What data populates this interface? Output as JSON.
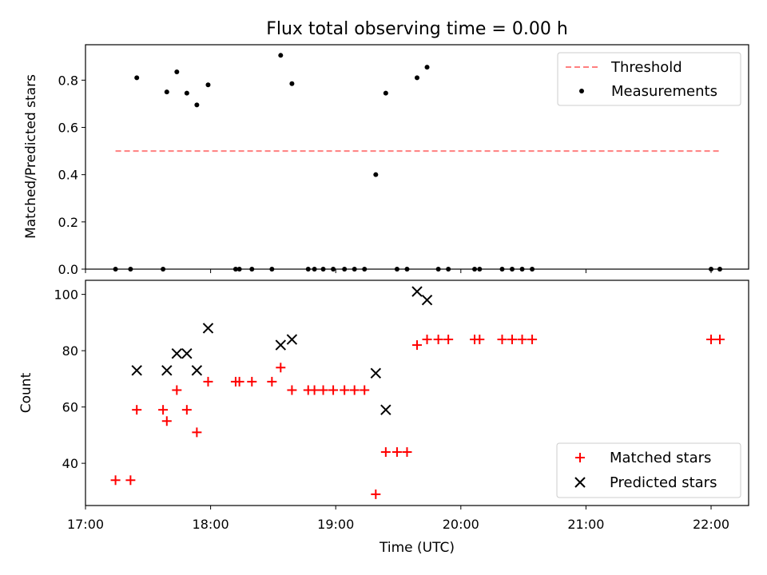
{
  "chart_data": [
    {
      "type": "scatter",
      "title": "Flux total observing time = 0.00 h",
      "xlabel": "",
      "ylabel": "Matched/Predicted stars",
      "xlim": [
        17.0,
        22.3
      ],
      "ylim": [
        0.0,
        0.95
      ],
      "yticks": [
        "0.0",
        "0.2",
        "0.4",
        "0.6",
        "0.8"
      ],
      "xticks_values": [
        17,
        18,
        19,
        20,
        21,
        22
      ],
      "legend_placement": "top-right",
      "colors": {
        "threshold": "#ff7f7f",
        "measurements": "#000000"
      },
      "threshold": {
        "name": "Threshold",
        "x": [
          17.24,
          22.07
        ],
        "y": 0.5
      },
      "series": [
        {
          "name": "Measurements",
          "x": [
            17.24,
            17.36,
            17.41,
            17.62,
            17.65,
            17.73,
            17.81,
            17.89,
            17.98,
            18.2,
            18.23,
            18.33,
            18.49,
            18.56,
            18.65,
            18.78,
            18.83,
            18.9,
            18.98,
            19.07,
            19.15,
            19.23,
            19.32,
            19.4,
            19.49,
            19.57,
            19.65,
            19.73,
            19.82,
            19.9,
            20.11,
            20.15,
            20.33,
            20.41,
            20.49,
            20.57,
            22.0,
            22.07
          ],
          "y": [
            0.0,
            0.0,
            0.81,
            0.0,
            0.75,
            0.835,
            0.745,
            0.695,
            0.78,
            0.0,
            0.0,
            0.0,
            0.0,
            0.905,
            0.785,
            0.0,
            0.0,
            0.0,
            0.0,
            0.0,
            0.0,
            0.0,
            0.4,
            0.745,
            0.0,
            0.0,
            0.81,
            0.855,
            0.0,
            0.0,
            0.0,
            0.0,
            0.0,
            0.0,
            0.0,
            0.0,
            0.0,
            0.0
          ]
        }
      ]
    },
    {
      "type": "scatter",
      "title": "",
      "xlabel": "Time (UTC)",
      "ylabel": "Count",
      "xlim": [
        17.0,
        22.3
      ],
      "ylim": [
        25,
        105
      ],
      "yticks": [
        "40",
        "60",
        "80",
        "100"
      ],
      "yticks_values": [
        40,
        60,
        80,
        100
      ],
      "xticks": [
        "17:00",
        "18:00",
        "19:00",
        "20:00",
        "21:00",
        "22:00"
      ],
      "xticks_values": [
        17,
        18,
        19,
        20,
        21,
        22
      ],
      "legend_placement": "bottom-right",
      "colors": {
        "matched": "#ff0000",
        "predicted": "#000000"
      },
      "series": [
        {
          "name": "Matched stars",
          "x": [
            17.24,
            17.36,
            17.41,
            17.62,
            17.65,
            17.73,
            17.81,
            17.89,
            17.98,
            18.2,
            18.23,
            18.33,
            18.49,
            18.56,
            18.65,
            18.78,
            18.83,
            18.9,
            18.98,
            19.07,
            19.15,
            19.23,
            19.32,
            19.4,
            19.49,
            19.57,
            19.65,
            19.73,
            19.82,
            19.9,
            20.11,
            20.15,
            20.33,
            20.41,
            20.49,
            20.57,
            22.0,
            22.07
          ],
          "y": [
            34,
            34,
            59,
            59,
            55,
            66,
            59,
            51,
            69,
            69,
            69,
            69,
            69,
            74,
            66,
            66,
            66,
            66,
            66,
            66,
            66,
            66,
            29,
            44,
            44,
            44,
            82,
            84,
            84,
            84,
            84,
            84,
            84,
            84,
            84,
            84,
            84,
            84
          ]
        },
        {
          "name": "Predicted stars",
          "x": [
            17.41,
            17.65,
            17.73,
            17.81,
            17.89,
            17.98,
            18.56,
            18.65,
            19.32,
            19.4,
            19.65,
            19.73
          ],
          "y": [
            73,
            73,
            79,
            79,
            73,
            88,
            82,
            84,
            72,
            59,
            101,
            98
          ]
        }
      ]
    }
  ]
}
